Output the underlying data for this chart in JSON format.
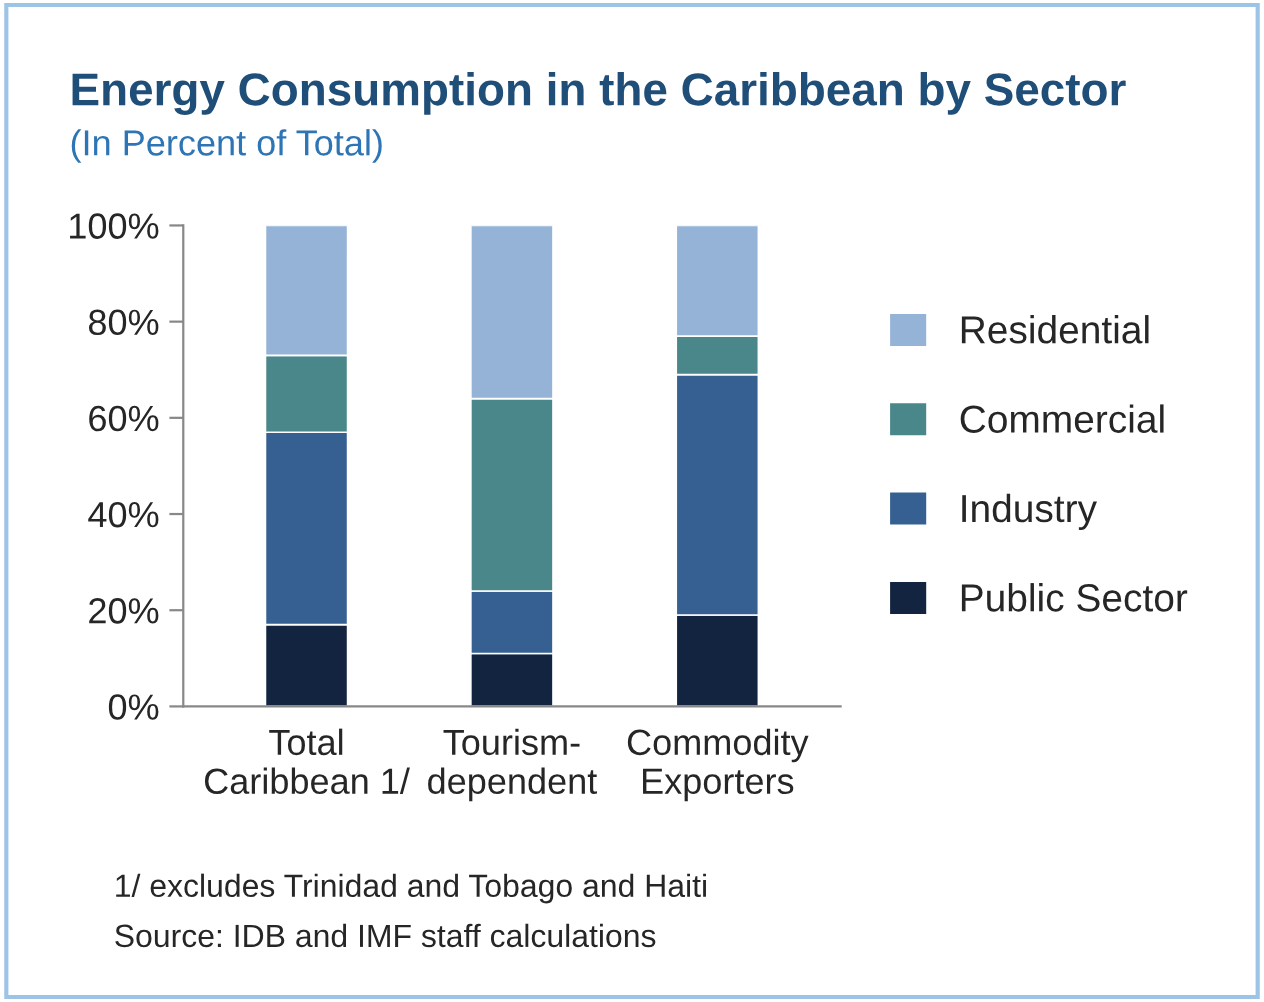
{
  "chart_data": {
    "type": "bar",
    "title": "Energy Consumption in the Caribbean by Sector",
    "subtitle": "(In Percent of Total)",
    "categories": [
      "Total\nCaribbean 1/",
      "Tourism-\ndependent",
      "Commodity\nExporters"
    ],
    "stacked": true,
    "series": [
      {
        "name": "Public Sector",
        "color": "#12243f",
        "values": [
          17,
          11,
          19
        ]
      },
      {
        "name": "Industry",
        "color": "#366092",
        "values": [
          40,
          13,
          50
        ]
      },
      {
        "name": "Commercial",
        "color": "#4a878a",
        "values": [
          16,
          40,
          8
        ]
      },
      {
        "name": "Residential",
        "color": "#95b3d7",
        "values": [
          27,
          36,
          23
        ]
      }
    ],
    "ylim": [
      0,
      100
    ],
    "yticks": [
      {
        "value": 0,
        "label": "0%"
      },
      {
        "value": 20,
        "label": "20%"
      },
      {
        "value": 40,
        "label": "40%"
      },
      {
        "value": 60,
        "label": "60%"
      },
      {
        "value": 80,
        "label": "80%"
      },
      {
        "value": 100,
        "label": "100%"
      }
    ],
    "grid": false,
    "legend": "right",
    "annotations": [
      "1/ excludes Trinidad and Tobago and Haiti",
      "Source: IDB and IMF staff calculations"
    ]
  }
}
